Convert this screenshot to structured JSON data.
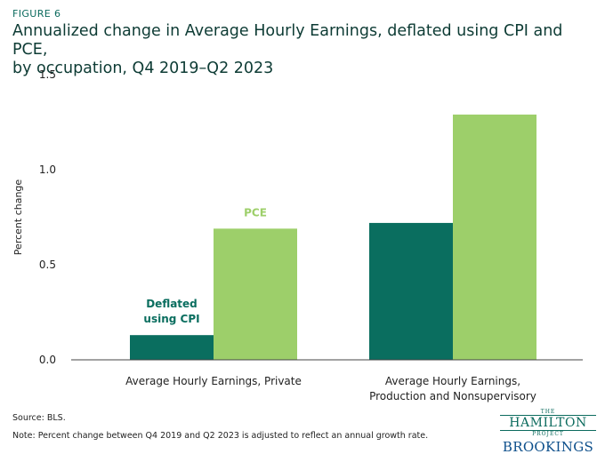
{
  "figure_label": "FIGURE 6",
  "title_line1": "Annualized change in Average Hourly Earnings, deflated using CPI and PCE,",
  "title_line2": "by occupation, Q4 2019–Q2 2023",
  "source": "Source: BLS.",
  "note": "Note: Percent change between Q4 2019 and Q2 2023 is adjusted to reflect an annual growth rate.",
  "logos": {
    "hamilton_the": "THE",
    "hamilton_name": "HAMILTON",
    "hamilton_project": "PROJECT",
    "brookings": "BROOKINGS"
  },
  "colors": {
    "cpi": "#0a6e5f",
    "pce": "#9dcf6a",
    "title": "#0d3b34"
  },
  "chart_data": {
    "type": "bar",
    "title": "Annualized change in Average Hourly Earnings, deflated using CPI and PCE, by occupation, Q4 2019–Q2 2023",
    "xlabel": "",
    "ylabel": "Percent change",
    "ylim": [
      0,
      1.5
    ],
    "yticks": [
      "0.0",
      "0.5",
      "1.0",
      "1.5"
    ],
    "ytick_values": [
      0,
      0.5,
      1.0,
      1.5
    ],
    "categories": [
      [
        "Average Hourly Earnings, Private"
      ],
      [
        "Average Hourly Earnings,",
        "Production and Nonsupervisory"
      ]
    ],
    "series": [
      {
        "name": "CPI",
        "annotation": [
          "Deflated",
          "using CPI"
        ],
        "values": [
          0.13,
          0.72
        ]
      },
      {
        "name": "PCE",
        "annotation": [
          "PCE"
        ],
        "values": [
          0.69,
          1.29
        ]
      }
    ]
  }
}
